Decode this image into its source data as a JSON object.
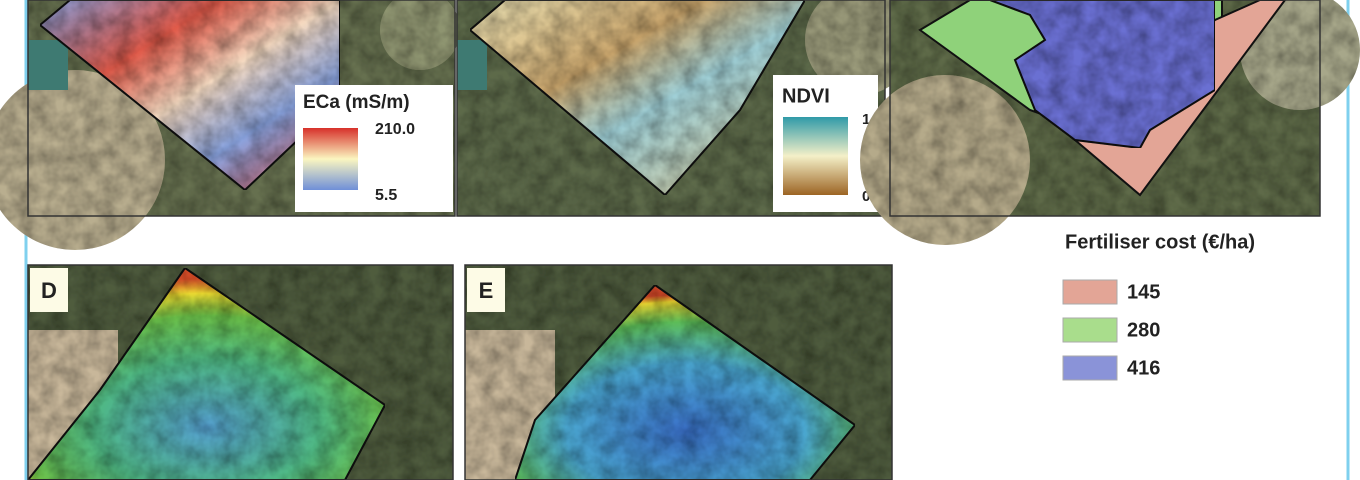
{
  "panels": [
    {
      "legend": {
        "title": "ECa (mS/m)",
        "max_label": "210.0",
        "min_label": "5.5"
      }
    },
    {
      "legend": {
        "title": "NDVI",
        "max_label": "1",
        "min_label": "0"
      }
    },
    {
      "label": "D"
    },
    {
      "label": "E"
    }
  ],
  "legend": {
    "title": "Fertiliser cost (€/ha)",
    "items": [
      "145",
      "280",
      "416"
    ]
  }
}
